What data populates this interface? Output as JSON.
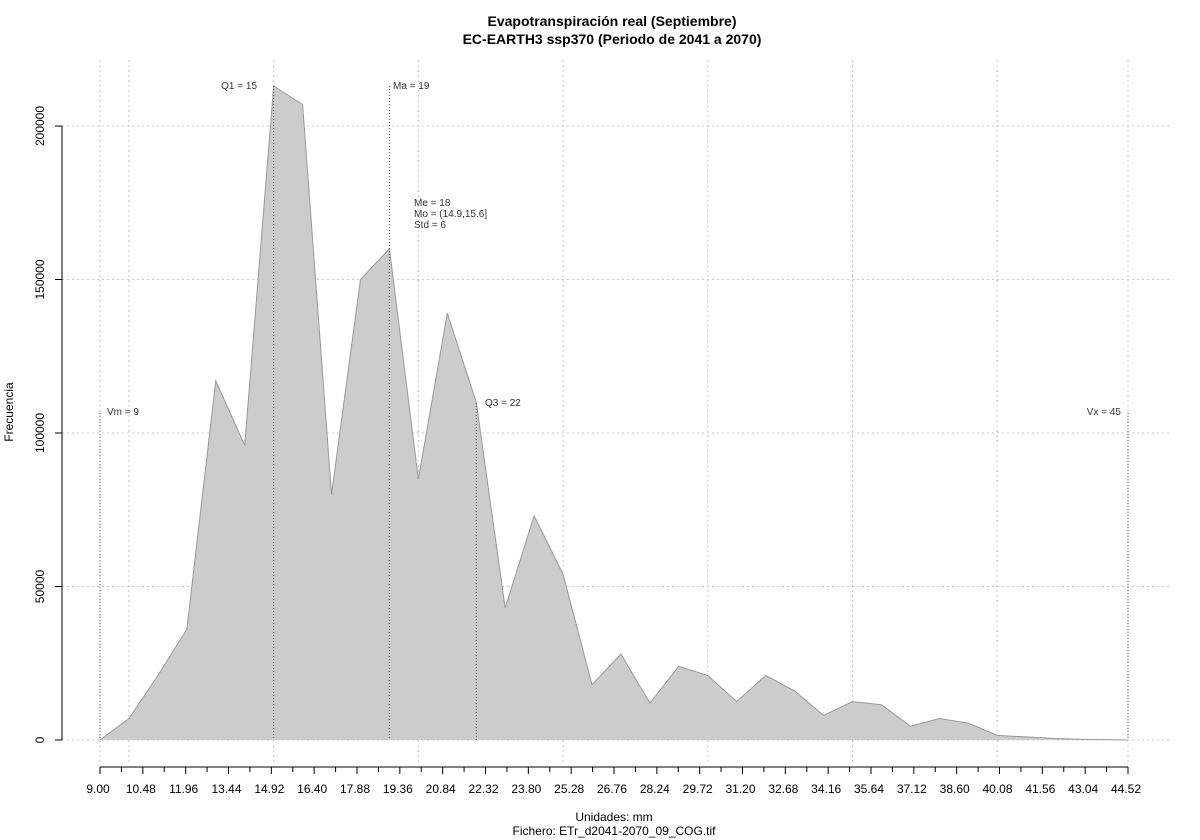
{
  "chart_data": {
    "type": "area",
    "title": "Evapotranspiración real (Septiembre)",
    "subtitle": "EC-EARTH3 ssp370 (Periodo de 2041 a 2070)",
    "xlabel": "Unidades: mm",
    "ylabel": "Frecuencia",
    "caption": "Fichero: ETr_d2041-2070_09_COG.tif",
    "xlim": [
      9.0,
      44.52
    ],
    "ylim": [
      0,
      200000
    ],
    "grid": true,
    "fill_color": "#cccccc",
    "line_color": "#999999",
    "x_tick_labels": [
      "9.00",
      "10.48",
      "11.96",
      "13.44",
      "14.92",
      "16.40",
      "17.88",
      "19.36",
      "20.84",
      "22.32",
      "23.80",
      "25.28",
      "26.76",
      "28.24",
      "29.72",
      "31.20",
      "32.68",
      "34.16",
      "35.64",
      "37.12",
      "38.60",
      "40.08",
      "41.56",
      "43.04",
      "44.52"
    ],
    "y_ticks": [
      0,
      50000,
      100000,
      150000,
      200000
    ],
    "y_tick_labels": [
      "0",
      "50000",
      "100000",
      "150000",
      "200000"
    ],
    "x": [
      9.0,
      10.0,
      11.0,
      12.0,
      13.0,
      14.0,
      15.0,
      16.0,
      17.0,
      18.0,
      19.0,
      20.0,
      21.0,
      22.0,
      23.0,
      24.0,
      25.0,
      26.0,
      27.0,
      28.0,
      29.0,
      30.0,
      31.0,
      32.0,
      33.0,
      34.0,
      35.0,
      36.0,
      37.0,
      38.0,
      39.0,
      40.0,
      41.0,
      42.0,
      43.0,
      44.0,
      44.52
    ],
    "y": [
      0,
      7000,
      21000,
      36000,
      117000,
      96000,
      213000,
      207000,
      80000,
      150000,
      160000,
      85000,
      139000,
      110000,
      43000,
      73000,
      54000,
      18000,
      28000,
      12000,
      24000,
      21000,
      12500,
      21000,
      16000,
      8000,
      12500,
      11500,
      4500,
      7000,
      5500,
      1500,
      1000,
      500,
      200,
      100,
      0
    ],
    "annotations": {
      "vm": "Vm = 9",
      "q1": "Q1 = 15",
      "ma": "Ma = 19",
      "me": "Me = 18",
      "mo": "Mo = (14.9,15.6]",
      "std": "Std = 6",
      "q3": "Q3 = 22",
      "vx": "Vx = 45"
    },
    "reference_lines": {
      "vm": 9.0,
      "q1": 15.0,
      "ma": 19.0,
      "q3": 22.0,
      "vx": 44.52
    }
  }
}
